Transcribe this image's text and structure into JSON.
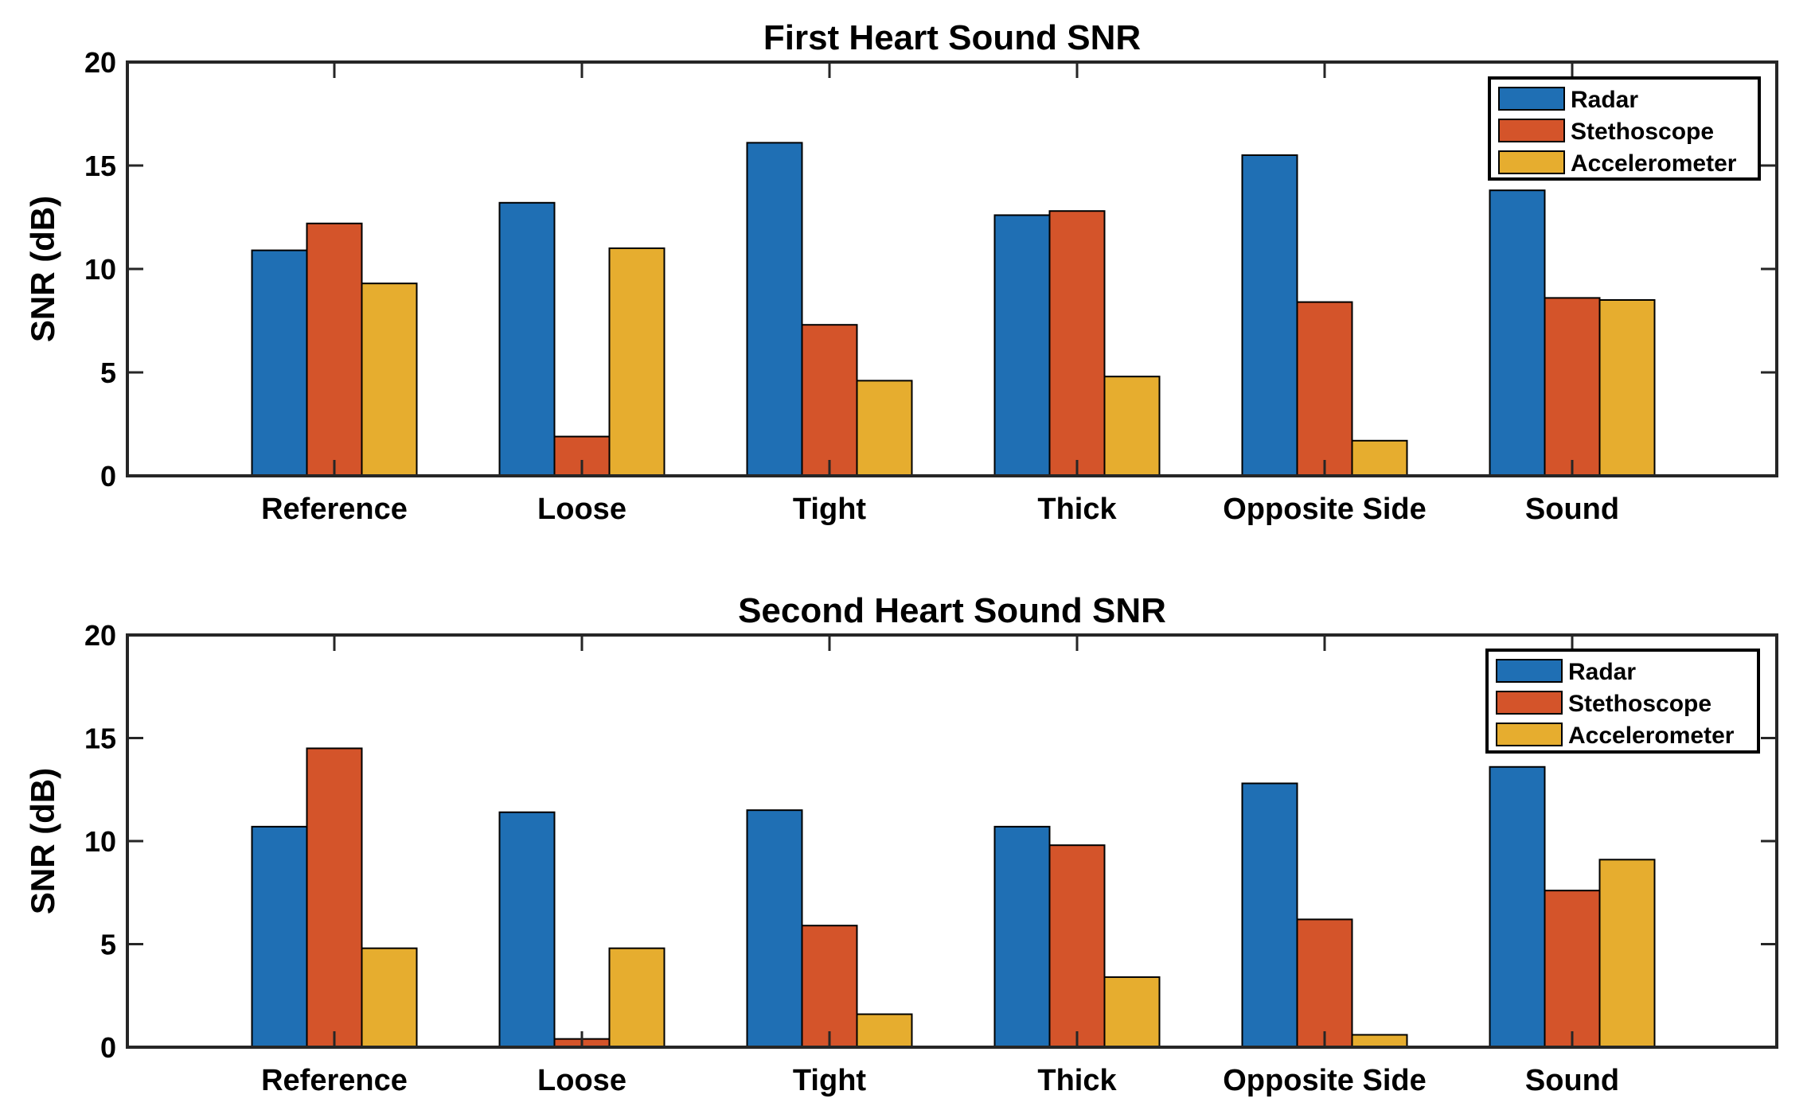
{
  "chart_data": [
    {
      "type": "bar",
      "title": "First Heart Sound SNR",
      "xlabel": "",
      "ylabel": "SNR (dB)",
      "ylim": [
        0,
        20
      ],
      "yticks": [
        0,
        5,
        10,
        15,
        20
      ],
      "categories": [
        "Reference",
        "Loose",
        "Tight",
        "Thick",
        "Opposite Side",
        "Sound"
      ],
      "series": [
        {
          "name": "Radar",
          "color": "#1f6fb4",
          "values": [
            10.9,
            13.2,
            16.1,
            12.6,
            15.5,
            13.8
          ]
        },
        {
          "name": "Stethoscope",
          "color": "#d4542a",
          "values": [
            12.2,
            1.9,
            7.3,
            12.8,
            8.4,
            8.6
          ]
        },
        {
          "name": "Accelerometer",
          "color": "#e6ad2f",
          "values": [
            9.3,
            11.0,
            4.6,
            4.8,
            1.7,
            8.5
          ]
        }
      ],
      "legend_position": "top-right",
      "grid": false
    },
    {
      "type": "bar",
      "title": "Second Heart Sound SNR",
      "xlabel": "",
      "ylabel": "SNR (dB)",
      "ylim": [
        0,
        20
      ],
      "yticks": [
        0,
        5,
        10,
        15,
        20
      ],
      "categories": [
        "Reference",
        "Loose",
        "Tight",
        "Thick",
        "Opposite Side",
        "Sound"
      ],
      "series": [
        {
          "name": "Radar",
          "color": "#1f6fb4",
          "values": [
            10.7,
            11.4,
            11.5,
            10.7,
            12.8,
            13.6
          ]
        },
        {
          "name": "Stethoscope",
          "color": "#d4542a",
          "values": [
            14.5,
            0.4,
            5.9,
            9.8,
            6.2,
            7.6
          ]
        },
        {
          "name": "Accelerometer",
          "color": "#e6ad2f",
          "values": [
            4.8,
            4.8,
            1.6,
            3.4,
            0.6,
            9.1
          ]
        }
      ],
      "legend_position": "top-right",
      "grid": false
    }
  ]
}
